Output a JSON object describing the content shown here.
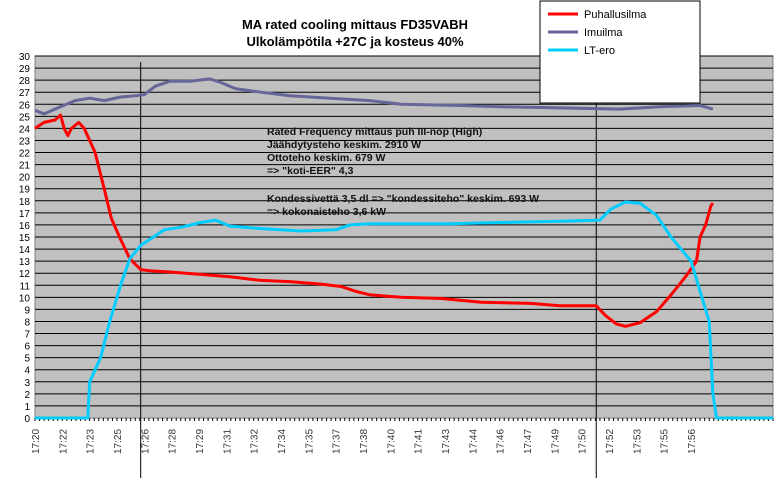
{
  "chart_data": {
    "type": "line",
    "title": [
      "MA rated cooling mittaus FD35VABH",
      "Ulkolämpötila +27C ja kosteus 40%"
    ],
    "xlabel": "",
    "ylabel": "",
    "ylim": [
      0,
      30
    ],
    "xlim_minutes": [
      20,
      60.5
    ],
    "x_tick_labels": [
      "17:20",
      "17:22",
      "17:23",
      "17:25",
      "17:26",
      "17:28",
      "17:29",
      "17:31",
      "17:32",
      "17:34",
      "17:35",
      "17:37",
      "17:38",
      "17:40",
      "17:41",
      "17:43",
      "17:44",
      "17:46",
      "17:47",
      "17:49",
      "17:50",
      "17:52",
      "17:53",
      "17:55",
      "17:56"
    ],
    "y_ticks": [
      0,
      1,
      2,
      3,
      4,
      5,
      6,
      7,
      8,
      9,
      10,
      11,
      12,
      13,
      14,
      15,
      16,
      17,
      18,
      19,
      20,
      21,
      22,
      23,
      24,
      25,
      26,
      27,
      28,
      29,
      30
    ],
    "vertical_markers_minutes": [
      25.8,
      50.8
    ],
    "legend": "top-right",
    "annotation": [
      "Rated Frequency mittaus puh III-nop (High)",
      "Jäähdytysteho keskim. 2910 W",
      "Ottoteho keskim. 679 W",
      "=> \"koti-EER\" 4,3",
      "",
      "Kondessivettä 3,5 dl => \"kondessiteho\" keskim. 693 W",
      "=> kokonaisteho 3,6 kW"
    ],
    "series": [
      {
        "name": "Puhallusilma",
        "color": "#ff0000",
        "x": [
          20.0,
          20.5,
          21.1,
          21.4,
          21.6,
          21.8,
          22.0,
          22.4,
          22.7,
          23.3,
          23.8,
          24.2,
          24.7,
          25.2,
          25.8,
          26.3,
          27.4,
          29.1,
          30.7,
          32.4,
          34.0,
          35.7,
          36.8,
          37.6,
          38.4,
          40.1,
          42.3,
          44.5,
          47.2,
          48.8,
          50.8,
          51.3,
          51.9,
          52.4,
          53.2,
          54.1,
          54.9,
          55.7,
          56.3,
          56.5,
          56.8,
          57.1,
          57.2
        ],
        "y": [
          24.0,
          24.5,
          24.7,
          25.1,
          24.0,
          23.4,
          24.0,
          24.5,
          24.0,
          22.0,
          19.0,
          16.5,
          14.8,
          13.2,
          12.3,
          12.2,
          12.1,
          11.9,
          11.7,
          11.4,
          11.3,
          11.1,
          10.9,
          10.5,
          10.2,
          10.0,
          9.9,
          9.6,
          9.5,
          9.3,
          9.3,
          8.5,
          7.8,
          7.6,
          7.9,
          8.8,
          10.2,
          11.7,
          13.0,
          15.0,
          16.0,
          17.6,
          17.8
        ]
      },
      {
        "name": "Imuilma",
        "color": "#666699",
        "x": [
          20.0,
          20.5,
          21.4,
          22.2,
          23.0,
          23.8,
          24.7,
          25.5,
          26.0,
          26.6,
          27.4,
          28.5,
          29.6,
          30.2,
          31.0,
          32.4,
          34.0,
          36.2,
          38.4,
          40.1,
          43.4,
          45.5,
          48.8,
          52.1,
          54.3,
          56.5,
          57.2
        ],
        "y": [
          25.5,
          25.2,
          25.8,
          26.3,
          26.5,
          26.3,
          26.6,
          26.7,
          26.8,
          27.5,
          27.9,
          27.9,
          28.1,
          27.8,
          27.3,
          27.0,
          26.7,
          26.5,
          26.3,
          26.0,
          25.9,
          25.8,
          25.7,
          25.6,
          25.8,
          25.9,
          25.6
        ]
      },
      {
        "name": "LT-ero",
        "color": "#00ccff",
        "x": [
          20.0,
          22.9,
          23.0,
          23.6,
          24.1,
          24.7,
          25.2,
          25.8,
          26.3,
          27.1,
          28.0,
          29.1,
          29.9,
          30.7,
          32.4,
          34.6,
          36.5,
          37.3,
          38.4,
          40.1,
          42.8,
          45.5,
          48.8,
          51.0,
          51.6,
          52.4,
          53.2,
          54.1,
          54.9,
          56.0,
          56.5,
          57.0,
          57.2,
          57.4,
          60.5
        ],
        "y": [
          0,
          0,
          3.0,
          5.0,
          8.0,
          11.0,
          13.2,
          14.3,
          14.8,
          15.6,
          15.8,
          16.2,
          16.4,
          15.9,
          15.7,
          15.5,
          15.6,
          16.0,
          16.1,
          16.1,
          16.1,
          16.2,
          16.3,
          16.4,
          17.3,
          17.9,
          17.8,
          16.8,
          15.0,
          13.0,
          10.5,
          8.0,
          2.0,
          0,
          0
        ]
      }
    ]
  }
}
